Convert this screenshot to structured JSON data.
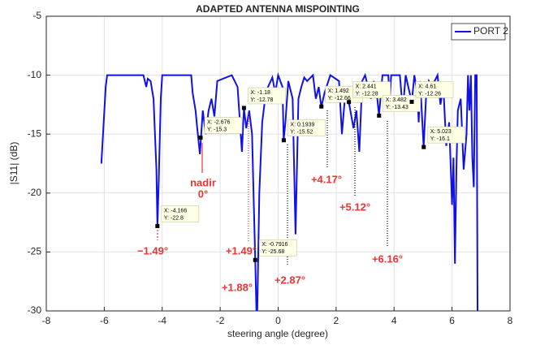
{
  "chart_data": {
    "type": "line",
    "title": "ADAPTED ANTENNA MISPOINTING",
    "xlabel": "steering angle (degree)",
    "ylabel": "|S11| (dB)",
    "xlim": [
      -8,
      8
    ],
    "xticks": [
      -8,
      -6,
      -4,
      -2,
      0,
      2,
      4,
      6,
      8
    ],
    "ylim": [
      -30,
      -5
    ],
    "yticks": [
      -30,
      -25,
      -20,
      -15,
      -10,
      -5
    ],
    "grid": true,
    "legend": "northeast",
    "series": [
      {
        "name": "PORT 2",
        "color": "#1010e8",
        "x": [
          -6.1,
          -5.95,
          -5.9,
          -4.65,
          -4.55,
          -4.5,
          -4.4,
          -4.3,
          -4.2,
          -4.166,
          -4.12,
          -4.05,
          -4.0,
          -3.0,
          -2.95,
          -2.85,
          -2.8,
          -2.7,
          -2.6,
          -2.5,
          -2.4,
          -2.3,
          -2.2,
          -2.1,
          -1.6,
          -1.4,
          -1.25,
          -1.18,
          -1.1,
          -1.0,
          -0.9,
          -0.85,
          -0.79,
          -0.75,
          -0.72,
          -0.65,
          -0.55,
          -0.45,
          -0.35,
          -0.2,
          -0.1,
          0.0,
          0.15,
          0.19,
          0.25,
          0.35,
          0.5,
          0.6,
          0.7,
          0.8,
          0.9,
          1.0,
          1.2,
          1.3,
          1.4,
          1.49,
          1.6,
          1.8,
          2.1,
          2.2,
          2.3,
          2.44,
          2.6,
          2.7,
          2.8,
          2.9,
          3.0,
          3.2,
          3.3,
          3.4,
          3.48,
          3.6,
          3.8,
          3.85,
          3.9,
          4.2,
          4.3,
          4.4,
          4.61,
          4.7,
          4.8,
          4.85,
          4.9,
          5.02,
          5.1,
          5.2,
          5.3,
          5.5,
          5.6,
          5.7,
          5.8,
          5.9,
          6.0,
          6.05,
          6.1,
          6.15,
          6.2,
          6.3,
          6.4,
          6.5,
          6.55,
          6.6,
          6.65,
          6.7,
          6.75,
          6.8,
          6.85,
          6.88
        ],
        "values": [
          -17.5,
          -11,
          -10,
          -10,
          -11,
          -10.3,
          -10.5,
          -12,
          -18,
          -22.8,
          -19,
          -12,
          -10,
          -10,
          -11.5,
          -13,
          -14.3,
          -16.7,
          -13,
          -15,
          -13,
          -12,
          -13.5,
          -10.5,
          -10,
          -11,
          -16.5,
          -12.8,
          -14.5,
          -13,
          -15,
          -20,
          -25.7,
          -30,
          -30,
          -20,
          -14,
          -12,
          -11,
          -10.2,
          -11.5,
          -10,
          -11,
          -15.5,
          -14,
          -10.5,
          -12,
          -23.5,
          -12,
          -11,
          -10.2,
          -10.5,
          -10,
          -12,
          -11,
          -12.7,
          -11.5,
          -10,
          -10.5,
          -15,
          -12,
          -12.3,
          -14.5,
          -13,
          -16.5,
          -10.5,
          -10,
          -12,
          -10.5,
          -11.5,
          -13.4,
          -10,
          -10,
          -12,
          -10,
          -10,
          -13,
          -10,
          -12.3,
          -10,
          -11.5,
          -14,
          -10.5,
          -16.1,
          -12,
          -10.5,
          -11,
          -10,
          -12.5,
          -11,
          -16,
          -14,
          -21,
          -17,
          -26,
          -18,
          -13,
          -12,
          -18,
          -15,
          -10,
          -13,
          -10,
          -17,
          -19.5,
          -10,
          -10,
          -30
        ]
      }
    ],
    "datatips": [
      {
        "x": -4.166,
        "y": -22.8,
        "x_label": "X: -4.166",
        "y_label": "Y: -22.8"
      },
      {
        "x": -2.676,
        "y": -15.3,
        "x_label": "X: -2.676",
        "y_label": "Y: -15.3"
      },
      {
        "x": -1.18,
        "y": -12.78,
        "x_label": "X: -1.18",
        "y_label": "Y: -12.78"
      },
      {
        "x": -0.7916,
        "y": -25.68,
        "x_label": "X: -0.7916",
        "y_label": "Y: -25.68"
      },
      {
        "x": 0.1939,
        "y": -15.52,
        "x_label": "X: 0.1939",
        "y_label": "Y: -15.52"
      },
      {
        "x": 1.492,
        "y": -12.66,
        "x_label": "X: 1.492",
        "y_label": "Y: -12.66"
      },
      {
        "x": 2.441,
        "y": -12.28,
        "x_label": "X: 2.441",
        "y_label": "Y: -12.28"
      },
      {
        "x": 3.482,
        "y": -13.43,
        "x_label": "X: 3.482",
        "y_label": "Y: -13.43"
      },
      {
        "x": 4.61,
        "y": -12.26,
        "x_label": "X: 4.61",
        "y_label": "Y: -12.26"
      },
      {
        "x": 5.023,
        "y": -16.1,
        "x_label": "X: 5.023",
        "y_label": "Y: -16.1"
      }
    ],
    "annotations": [
      "nadir",
      "0°",
      "−1.49°",
      "+1.49°",
      "+1.88°",
      "+2.87°",
      "+4.17°",
      "+5.12°",
      "+6.16°"
    ]
  }
}
